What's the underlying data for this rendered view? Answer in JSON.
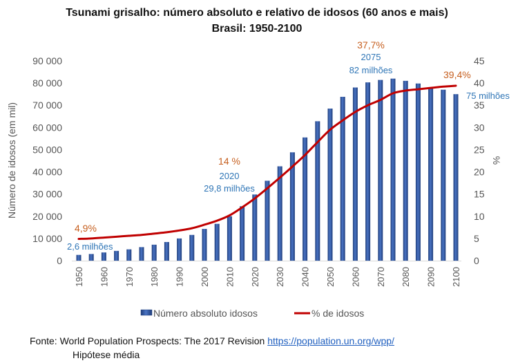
{
  "chart_data": {
    "type": "bar",
    "title": "Tsunami grisalho: número absoluto e relativo de idosos (60 anos e mais)",
    "subtitle": "Brasil: 1950-2100",
    "ylabel": "Número de idosos (em mil)",
    "y2label": "%",
    "ylim": [
      0,
      90000
    ],
    "y2lim": [
      0,
      45
    ],
    "yticks": [
      "0",
      "10 000",
      "20 000",
      "30 000",
      "40 000",
      "50 000",
      "60 000",
      "70 000",
      "80 000",
      "90 000"
    ],
    "y2ticks": [
      "0",
      "5",
      "10",
      "15",
      "20",
      "25",
      "30",
      "35",
      "40",
      "45"
    ],
    "x": [
      1950,
      1955,
      1960,
      1965,
      1970,
      1975,
      1980,
      1985,
      1990,
      1995,
      2000,
      2005,
      2010,
      2015,
      2020,
      2025,
      2030,
      2035,
      2040,
      2045,
      2050,
      2055,
      2060,
      2065,
      2070,
      2075,
      2080,
      2085,
      2090,
      2095,
      2100
    ],
    "xtick_labels": [
      "1950",
      "1960",
      "1970",
      "1980",
      "1990",
      "2000",
      "2010",
      "2020",
      "2030",
      "2040",
      "2050",
      "2060",
      "2070",
      "2080",
      "2090",
      "2100"
    ],
    "series": [
      {
        "name": "Número absoluto idosos",
        "type": "bar",
        "axis": "left",
        "color": "#2f5597",
        "values": [
          2600,
          3000,
          3700,
          4400,
          5100,
          6100,
          7200,
          8400,
          10000,
          11600,
          14300,
          16600,
          20000,
          24500,
          29800,
          36000,
          42500,
          48800,
          55500,
          62800,
          68500,
          73800,
          78000,
          80300,
          81400,
          82000,
          81000,
          79800,
          78000,
          77000,
          75000
        ]
      },
      {
        "name": "% de idosos",
        "type": "line",
        "axis": "right",
        "color": "#c00000",
        "values": [
          4.9,
          5.0,
          5.2,
          5.4,
          5.6,
          5.8,
          6.1,
          6.4,
          6.8,
          7.3,
          8.1,
          9.0,
          10.2,
          12.0,
          14.0,
          16.3,
          18.7,
          21.2,
          23.8,
          26.7,
          29.5,
          31.6,
          33.5,
          35.0,
          36.2,
          37.7,
          38.3,
          38.6,
          38.9,
          39.2,
          39.4
        ]
      }
    ],
    "annotations": [
      {
        "id": "a1950pct",
        "text": "4,9%",
        "color": "orange"
      },
      {
        "id": "a1950abs",
        "text": "2,6 milhões",
        "color": "blue"
      },
      {
        "id": "a2020pct",
        "text": "14 %",
        "color": "orange"
      },
      {
        "id": "a2020year",
        "text": "2020",
        "color": "blue"
      },
      {
        "id": "a2020abs",
        "text": "29,8 milhões",
        "color": "blue"
      },
      {
        "id": "a2075pct",
        "text": "37,7%",
        "color": "orange"
      },
      {
        "id": "a2075year",
        "text": "2075",
        "color": "blue"
      },
      {
        "id": "a2075abs",
        "text": "82 milhões",
        "color": "blue"
      },
      {
        "id": "a2100pct",
        "text": "39,4%",
        "color": "orange"
      },
      {
        "id": "a2100abs",
        "text": "75 milhões",
        "color": "blue"
      }
    ],
    "legend": {
      "position": "bottom",
      "items": [
        "Número absoluto idosos",
        "% de idosos"
      ]
    },
    "grid": false
  },
  "source": {
    "prefix": "Fonte: World Population Prospects: The 2017 Revision",
    "link": "https://population.un.org/wpp/",
    "line2": "Hipótese média"
  }
}
